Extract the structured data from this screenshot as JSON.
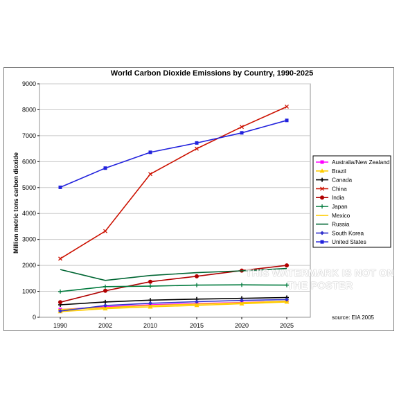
{
  "chart_data": {
    "type": "line",
    "title": "World Carbon Dioxide Emissions by Country, 1990-2025",
    "xlabel": "",
    "ylabel": "Million metric tons carbon dioxide",
    "ylim": [
      0,
      9000
    ],
    "yticks": [
      "0",
      "1000",
      "2000",
      "3000",
      "4000",
      "5000",
      "6000",
      "7000",
      "8000",
      "9000"
    ],
    "categories": [
      "1990",
      "2002",
      "2010",
      "2015",
      "2020",
      "2025"
    ],
    "grid": "horizontal",
    "legend_position": "right",
    "series": [
      {
        "name": "Australia/New Zealand",
        "color": "#ff00ff",
        "marker": "square",
        "values": [
          300,
          400,
          480,
          530,
          570,
          620
        ]
      },
      {
        "name": "Brazil",
        "color": "#ffcc00",
        "marker": "triangle",
        "values": [
          220,
          330,
          400,
          460,
          520,
          590
        ]
      },
      {
        "name": "Canada",
        "color": "#000000",
        "marker": "cross",
        "values": [
          480,
          590,
          660,
          700,
          730,
          760
        ]
      },
      {
        "name": "China",
        "color": "#cc1100",
        "marker": "x",
        "values": [
          2260,
          3320,
          5520,
          6500,
          7340,
          8120
        ]
      },
      {
        "name": "India",
        "color": "#b00000",
        "marker": "circle",
        "values": [
          580,
          1020,
          1370,
          1580,
          1800,
          2000
        ]
      },
      {
        "name": "Japan",
        "color": "#007a3d",
        "marker": "plus",
        "values": [
          990,
          1180,
          1200,
          1240,
          1250,
          1240
        ]
      },
      {
        "name": "Mexico",
        "color": "#ffcc00",
        "marker": "dash",
        "values": [
          300,
          370,
          450,
          510,
          560,
          620
        ]
      },
      {
        "name": "Russia",
        "color": "#006633",
        "marker": "none",
        "values": [
          1840,
          1420,
          1610,
          1720,
          1790,
          1880
        ]
      },
      {
        "name": "South Korea",
        "color": "#3333cc",
        "marker": "diamond",
        "values": [
          240,
          450,
          540,
          600,
          650,
          680
        ]
      },
      {
        "name": "United States",
        "color": "#2222dd",
        "marker": "square",
        "values": [
          5010,
          5750,
          6360,
          6720,
          7110,
          7590
        ]
      }
    ],
    "source_note": "source: EIA 2005"
  },
  "watermark": "THIS WATERMARK IS NOT ON THE POSTER"
}
